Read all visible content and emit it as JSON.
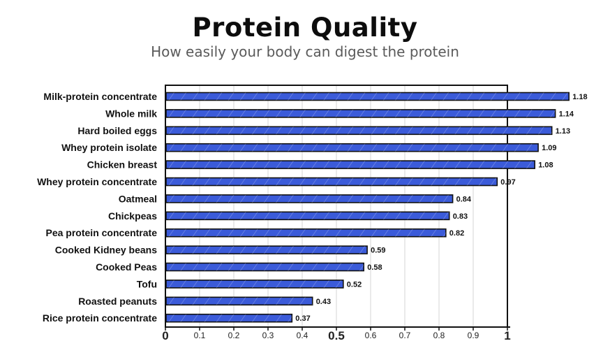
{
  "header": {
    "title": "Protein Quality",
    "subtitle": "How easily your body can digest the protein"
  },
  "chart_data": {
    "type": "bar",
    "orientation": "horizontal",
    "title": "Protein Quality",
    "subtitle": "How easily your body can digest the protein",
    "xlabel": "",
    "ylabel": "",
    "xlim": [
      0,
      1
    ],
    "grid": true,
    "bar_color": "#3b5bd9",
    "categories": [
      "Milk-protein concentrate",
      "Whole milk",
      "Hard boiled eggs",
      "Whey protein isolate",
      "Chicken breast",
      "Whey protein concentrate",
      "Oatmeal",
      "Chickpeas",
      "Pea protein concentrate",
      "Cooked Kidney beans",
      "Cooked Peas",
      "Tofu",
      "Roasted peanuts",
      "Rice protein concentrate"
    ],
    "values": [
      1.18,
      1.14,
      1.13,
      1.09,
      1.08,
      0.97,
      0.84,
      0.83,
      0.82,
      0.59,
      0.58,
      0.52,
      0.43,
      0.37
    ],
    "value_labels": [
      "1.18",
      "1.14",
      "1.13",
      "1.09",
      "1.08",
      "0.97",
      "0.84",
      "0.83",
      "0.82",
      "0.59",
      "0.58",
      "0.52",
      "0.43",
      "0.37"
    ],
    "x_ticks": [
      0,
      0.1,
      0.2,
      0.3,
      0.4,
      0.5,
      0.6,
      0.7,
      0.8,
      0.9,
      1
    ],
    "x_tick_labels": [
      "0",
      "0.1",
      "0.2",
      "0.3",
      "0.4",
      "0.5",
      "0.6",
      "0.7",
      "0.8",
      "0.9",
      "1"
    ]
  }
}
